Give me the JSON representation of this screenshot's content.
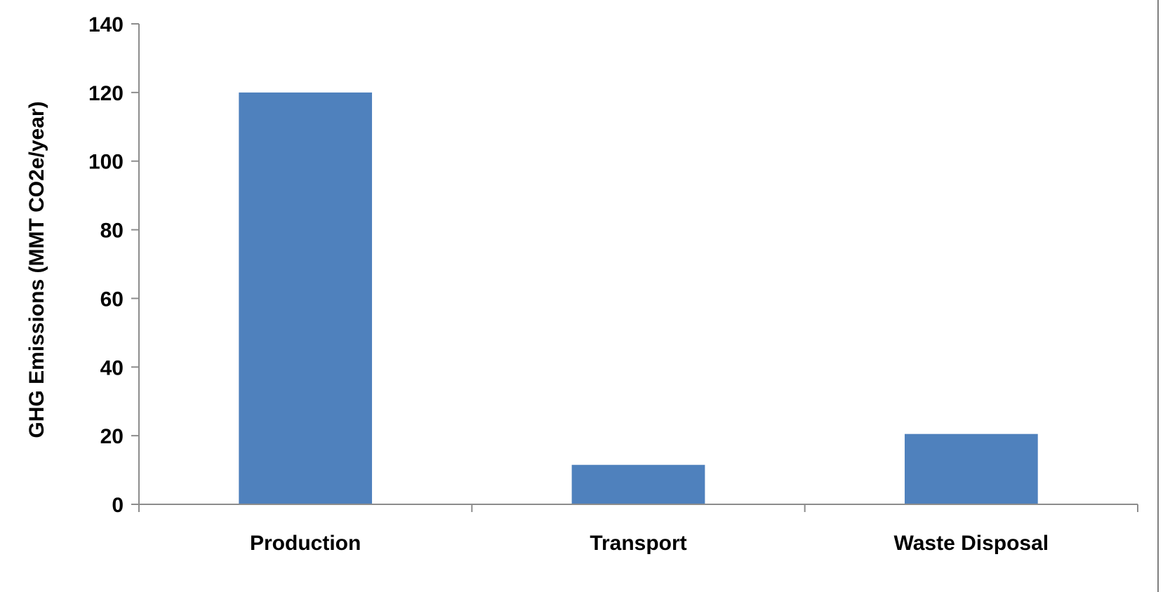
{
  "chart_data": {
    "type": "bar",
    "title": "",
    "xlabel": "",
    "ylabel": "GHG Emissions (MMT CO2e/year)",
    "categories": [
      "Production",
      "Transport",
      "Waste Disposal"
    ],
    "values": [
      120,
      11.5,
      20.5
    ],
    "ylim": [
      0,
      140
    ],
    "yticks": [
      0,
      20,
      40,
      60,
      80,
      100,
      120,
      140
    ],
    "ytick_labels": [
      "0",
      "20",
      "40",
      "60",
      "80",
      "100",
      "120",
      "140"
    ],
    "grid": false,
    "legend": "none",
    "bar_color": "#4f81bd",
    "axis_color": "#8c8c8c"
  }
}
